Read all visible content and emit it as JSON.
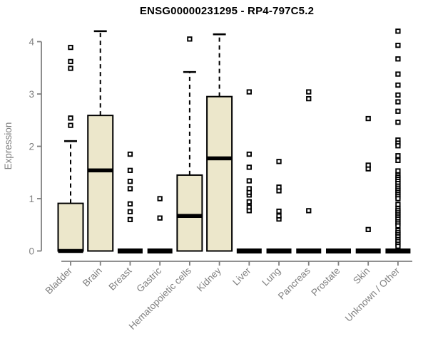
{
  "chart_data": {
    "type": "boxplot",
    "title": "ENSG00000231295 - RP4-797C5.2",
    "ylabel": "Expression",
    "xlabel": "",
    "ylim": [
      0,
      4.25
    ],
    "yticks": [
      0,
      1,
      2,
      3,
      4
    ],
    "grid": false,
    "legend": "none",
    "box_fill_color": "#ECE7CB",
    "box_stroke_color": "#000000",
    "axis_color": "#808080",
    "categories": [
      "Bladder",
      "Brain",
      "Breast",
      "Gastric",
      "Hematopoietic cells",
      "Kidney",
      "Liver",
      "Lung",
      "Pancreas",
      "Prostate",
      "Skin",
      "Unknown / Other"
    ],
    "series": [
      {
        "category": "Bladder",
        "whisker_low": 0,
        "q1": 0,
        "median": 0,
        "q3": 0.91,
        "whisker_high": 2.1,
        "outliers": [
          2.4,
          2.54,
          3.49,
          3.62,
          3.89
        ]
      },
      {
        "category": "Brain",
        "whisker_low": 0,
        "q1": 0,
        "median": 1.54,
        "q3": 2.59,
        "whisker_high": 4.2,
        "outliers": []
      },
      {
        "category": "Breast",
        "whisker_low": 0,
        "q1": 0,
        "median": 0,
        "q3": 0,
        "whisker_high": 0,
        "outliers": [
          0.6,
          0.75,
          0.9,
          1.19,
          1.33,
          1.54,
          1.85
        ]
      },
      {
        "category": "Gastric",
        "whisker_low": 0,
        "q1": 0,
        "median": 0,
        "q3": 0,
        "whisker_high": 0,
        "outliers": [
          0.63,
          1.0
        ]
      },
      {
        "category": "Hematopoietic cells",
        "whisker_low": 0,
        "q1": 0,
        "median": 0.67,
        "q3": 1.45,
        "whisker_high": 3.42,
        "outliers": [
          4.05
        ]
      },
      {
        "category": "Kidney",
        "whisker_low": 0,
        "q1": 0,
        "median": 1.77,
        "q3": 2.95,
        "whisker_high": 4.14,
        "outliers": []
      },
      {
        "category": "Liver",
        "whisker_low": 0,
        "q1": 0,
        "median": 0,
        "q3": 0,
        "whisker_high": 0,
        "outliers": [
          0.77,
          0.84,
          0.94,
          1.07,
          1.12,
          1.19,
          1.34,
          1.6,
          1.85,
          3.04
        ]
      },
      {
        "category": "Lung",
        "whisker_low": 0,
        "q1": 0,
        "median": 0,
        "q3": 0,
        "whisker_high": 0,
        "outliers": [
          0.61,
          0.67,
          0.76,
          1.15,
          1.22,
          1.71
        ]
      },
      {
        "category": "Pancreas",
        "whisker_low": 0,
        "q1": 0,
        "median": 0,
        "q3": 0,
        "whisker_high": 0,
        "outliers": [
          0.77,
          2.91,
          3.04
        ]
      },
      {
        "category": "Prostate",
        "whisker_low": 0,
        "q1": 0,
        "median": 0,
        "q3": 0,
        "whisker_high": 0,
        "outliers": []
      },
      {
        "category": "Skin",
        "whisker_low": 0,
        "q1": 0,
        "median": 0,
        "q3": 0,
        "whisker_high": 0,
        "outliers": [
          0.41,
          1.57,
          1.64,
          2.53
        ]
      },
      {
        "category": "Unknown / Other",
        "whisker_low": 0,
        "q1": 0,
        "median": 0,
        "q3": 0,
        "whisker_high": 0,
        "outliers": [
          4.2,
          3.93,
          3.67,
          3.38,
          3.17,
          2.98,
          2.85,
          2.67,
          2.46,
          2.12,
          2.06,
          2.01,
          1.82,
          1.73,
          1.53,
          1.45,
          1.41,
          1.37,
          1.33,
          1.29,
          1.24,
          1.2,
          1.16,
          1.12,
          1.08,
          1.04,
          1.0,
          0.89,
          0.81,
          0.77,
          0.73,
          0.69,
          0.65,
          0.61,
          0.56,
          0.52,
          0.48,
          0.39,
          0.35,
          0.31,
          0.27,
          0.22,
          0.18,
          0.13,
          0.09
        ]
      }
    ]
  }
}
